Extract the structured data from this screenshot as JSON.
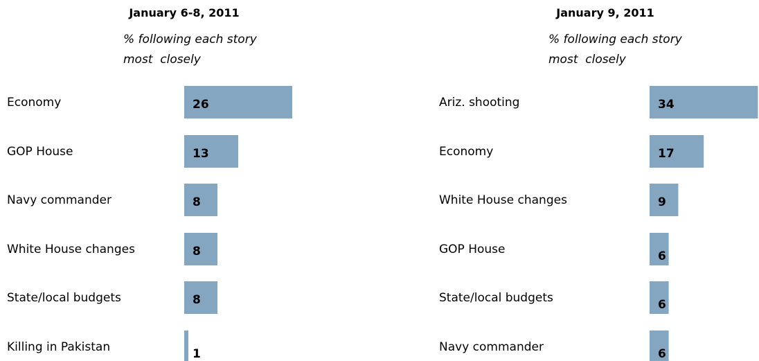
{
  "colors": {
    "bar": "#84a6c1"
  },
  "chart_data": [
    {
      "type": "bar",
      "orientation": "horizontal",
      "title": "January 6-8, 2011",
      "subtitle_line1": "% following each story",
      "subtitle_line2": "most  closely",
      "categories": [
        "Economy",
        "GOP House",
        "Navy commander",
        "White House changes",
        "State/local budgets",
        "Killing in Pakistan"
      ],
      "values": [
        26,
        13,
        8,
        8,
        8,
        1
      ]
    },
    {
      "type": "bar",
      "orientation": "horizontal",
      "title": "January 9, 2011",
      "subtitle_line1": "% following each story",
      "subtitle_line2": "most  closely",
      "categories": [
        "Ariz. shooting",
        "Economy",
        "White House changes",
        "GOP House",
        "State/local budgets",
        "Navy commander"
      ],
      "values": [
        34,
        17,
        9,
        6,
        6,
        6
      ]
    }
  ]
}
